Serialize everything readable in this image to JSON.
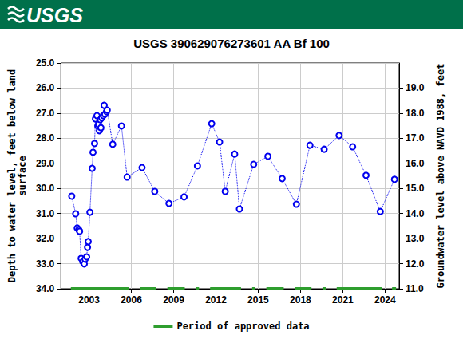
{
  "header": {
    "logo": "USGS"
  },
  "chart_data": {
    "type": "line",
    "title": "USGS 390629076273601 AA Bf 100",
    "ylabel": "Depth to water level, feet below land\nsurface",
    "y2label": "Groundwater level above NAVD 1988, feet",
    "x": [
      2001.77,
      2002.05,
      2002.16,
      2002.27,
      2002.33,
      2002.44,
      2002.55,
      2002.66,
      2002.72,
      2002.83,
      2002.89,
      2002.94,
      2003.06,
      2003.22,
      2003.28,
      2003.39,
      2003.45,
      2003.56,
      2003.62,
      2003.67,
      2003.73,
      2003.79,
      2003.84,
      2003.9,
      2004.01,
      2004.07,
      2004.12,
      2004.24,
      2004.29,
      2004.68,
      2005.3,
      2005.7,
      2006.76,
      2007.66,
      2008.67,
      2009.74,
      2010.69,
      2011.7,
      2012.26,
      2012.66,
      2013.33,
      2013.67,
      2014.68,
      2015.69,
      2016.7,
      2017.71,
      2018.67,
      2019.68,
      2020.74,
      2021.7,
      2022.65,
      2023.66,
      2024.67
    ],
    "values": [
      30.31,
      31.01,
      31.58,
      31.65,
      31.71,
      32.79,
      32.92,
      33.01,
      32.82,
      32.73,
      32.35,
      32.12,
      30.95,
      29.2,
      28.56,
      28.21,
      27.23,
      27.1,
      27.51,
      27.45,
      27.7,
      27.26,
      27.58,
      27.19,
      27.1,
      26.69,
      27.04,
      26.94,
      26.88,
      28.24,
      27.51,
      29.55,
      29.17,
      30.12,
      30.6,
      30.34,
      29.1,
      27.42,
      28.15,
      30.12,
      28.63,
      30.82,
      29.04,
      28.72,
      29.61,
      30.63,
      28.28,
      28.44,
      27.89,
      28.34,
      29.48,
      30.92,
      29.64
    ],
    "color": "#0000ee",
    "marker": "circle",
    "line_style": "dotted",
    "approved_periods": {
      "name": "Period of approved data",
      "color": "#2e9e2e",
      "ranges": [
        [
          2001.71,
          2005.81
        ],
        [
          2006.65,
          2007.77
        ],
        [
          2008.56,
          2009.79
        ],
        [
          2010.58,
          2010.8
        ],
        [
          2011.59,
          2013.78
        ],
        [
          2014.57,
          2014.79
        ],
        [
          2015.58,
          2016.81
        ],
        [
          2017.6,
          2018.78
        ],
        [
          2019.56,
          2019.79
        ],
        [
          2020.57,
          2023.78
        ],
        [
          2024.5,
          2024.78
        ]
      ]
    },
    "xlim": [
      2001,
      2025
    ],
    "xticks": [
      2003,
      2006,
      2009,
      2012,
      2015,
      2018,
      2021,
      2024
    ],
    "ylim": [
      34,
      25
    ],
    "yticks": [
      {
        "value": 25,
        "label": "25.0"
      },
      {
        "value": 26,
        "label": "26.0"
      },
      {
        "value": 27,
        "label": "27.0"
      },
      {
        "value": 28,
        "label": "28.0"
      },
      {
        "value": 29,
        "label": "29.0"
      },
      {
        "value": 30,
        "label": "30.0"
      },
      {
        "value": 31,
        "label": "31.0"
      },
      {
        "value": 32,
        "label": "32.0"
      },
      {
        "value": 33,
        "label": "33.0"
      },
      {
        "value": 34,
        "label": "34.0"
      }
    ],
    "y2lim": [
      11,
      20
    ],
    "y2ticks": [
      {
        "value": 11,
        "label": "11.0"
      },
      {
        "value": 12,
        "label": "12.0"
      },
      {
        "value": 13,
        "label": "13.0"
      },
      {
        "value": 14,
        "label": "14.0"
      },
      {
        "value": 15,
        "label": "15.0"
      },
      {
        "value": 16,
        "label": "16.0"
      },
      {
        "value": 17,
        "label": "17.0"
      },
      {
        "value": 18,
        "label": "18.0"
      },
      {
        "value": 19,
        "label": "19.0"
      }
    ],
    "grid": true,
    "legend": "bottom"
  }
}
